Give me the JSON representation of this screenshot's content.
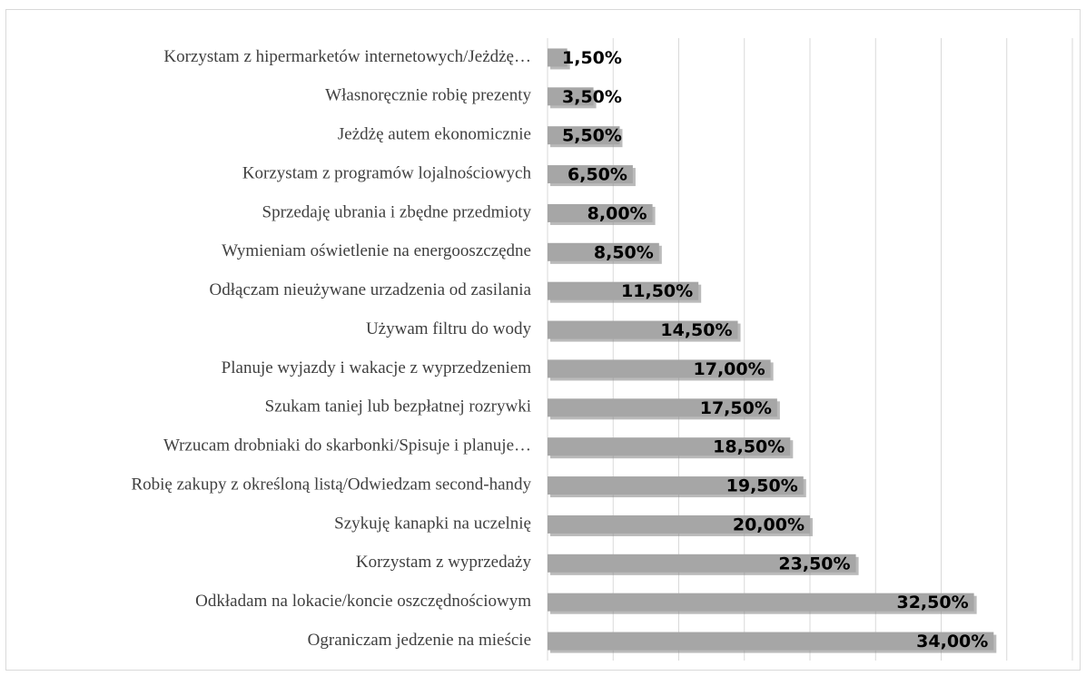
{
  "chart_data": {
    "type": "bar",
    "orientation": "horizontal",
    "categories": [
      "Korzystam z hipermarketów internetowych/Jeżdżę…",
      "Własnoręcznie robię prezenty",
      "Jeżdżę autem ekonomicznie",
      "Korzystam z programów lojalnościowych",
      "Sprzedaję ubrania i zbędne przedmioty",
      "Wymieniam oświetlenie na energooszczędne",
      "Odłączam nieużywane urzadzenia od zasilania",
      "Używam filtru do wody",
      "Planuje wyjazdy i wakacje z wyprzedzeniem",
      "Szukam taniej lub bezpłatnej rozrywki",
      "Wrzucam drobniaki do skarbonki/Spisuje i planuje…",
      "Robię zakupy z określoną listą/Odwiedzam second-handy",
      "Szykuję kanapki na uczelnię",
      "Korzystam z wyprzedaży",
      "Odkładam na lokacie/koncie oszczędnościowym",
      "Ograniczam jedzenie na mieście"
    ],
    "values": [
      1.5,
      3.5,
      5.5,
      6.5,
      8,
      8.5,
      11.5,
      14.5,
      17,
      17.5,
      18.5,
      19.5,
      20,
      23.5,
      32.5,
      34
    ],
    "value_labels": [
      "1,50%",
      "3,50%",
      "5,50%",
      "6,50%",
      "8,00%",
      "8,50%",
      "11,50%",
      "14,50%",
      "17,00%",
      "17,50%",
      "18,50%",
      "19,50%",
      "20,00%",
      "23,50%",
      "32,50%",
      "34,00%"
    ],
    "color": "#a6a6a6",
    "xlim": [
      0,
      40
    ],
    "xticks": [
      0,
      5,
      10,
      15,
      20,
      25,
      30,
      35,
      40
    ],
    "grid": true
  }
}
